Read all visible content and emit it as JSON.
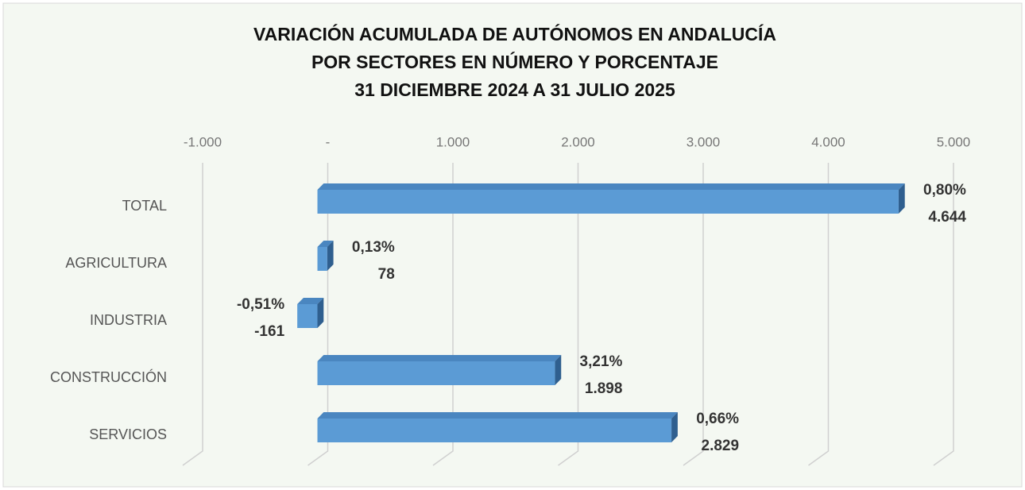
{
  "chart_data": {
    "type": "bar",
    "orientation": "horizontal",
    "title": [
      "VARIACIÓN ACUMULADA DE AUTÓNOMOS EN ANDALUCÍA",
      "POR SECTORES EN NÚMERO Y PORCENTAJE",
      "31 DICIEMBRE 2024 A 31 JULIO 2025"
    ],
    "categories": [
      "TOTAL",
      "AGRICULTURA",
      "INDUSTRIA",
      "CONSTRUCCIÓN",
      "SERVICIOS"
    ],
    "values": [
      4644,
      78,
      -161,
      1898,
      2829
    ],
    "value_labels": [
      "4.644",
      "78",
      "-161",
      "1.898",
      "2.829"
    ],
    "percent_labels": [
      "0,80%",
      "0,13%",
      "-0,51%",
      "3,21%",
      "0,66%"
    ],
    "color": "#5b9bd5",
    "xlim": [
      -1000,
      5000
    ],
    "xticks": [
      {
        "value": -1000,
        "label": "-1.000"
      },
      {
        "value": 0,
        "label": "-"
      },
      {
        "value": 1000,
        "label": "1.000"
      },
      {
        "value": 2000,
        "label": "2.000"
      },
      {
        "value": 3000,
        "label": "3.000"
      },
      {
        "value": 4000,
        "label": "4.000"
      },
      {
        "value": 5000,
        "label": "5.000"
      }
    ],
    "grid": true
  }
}
